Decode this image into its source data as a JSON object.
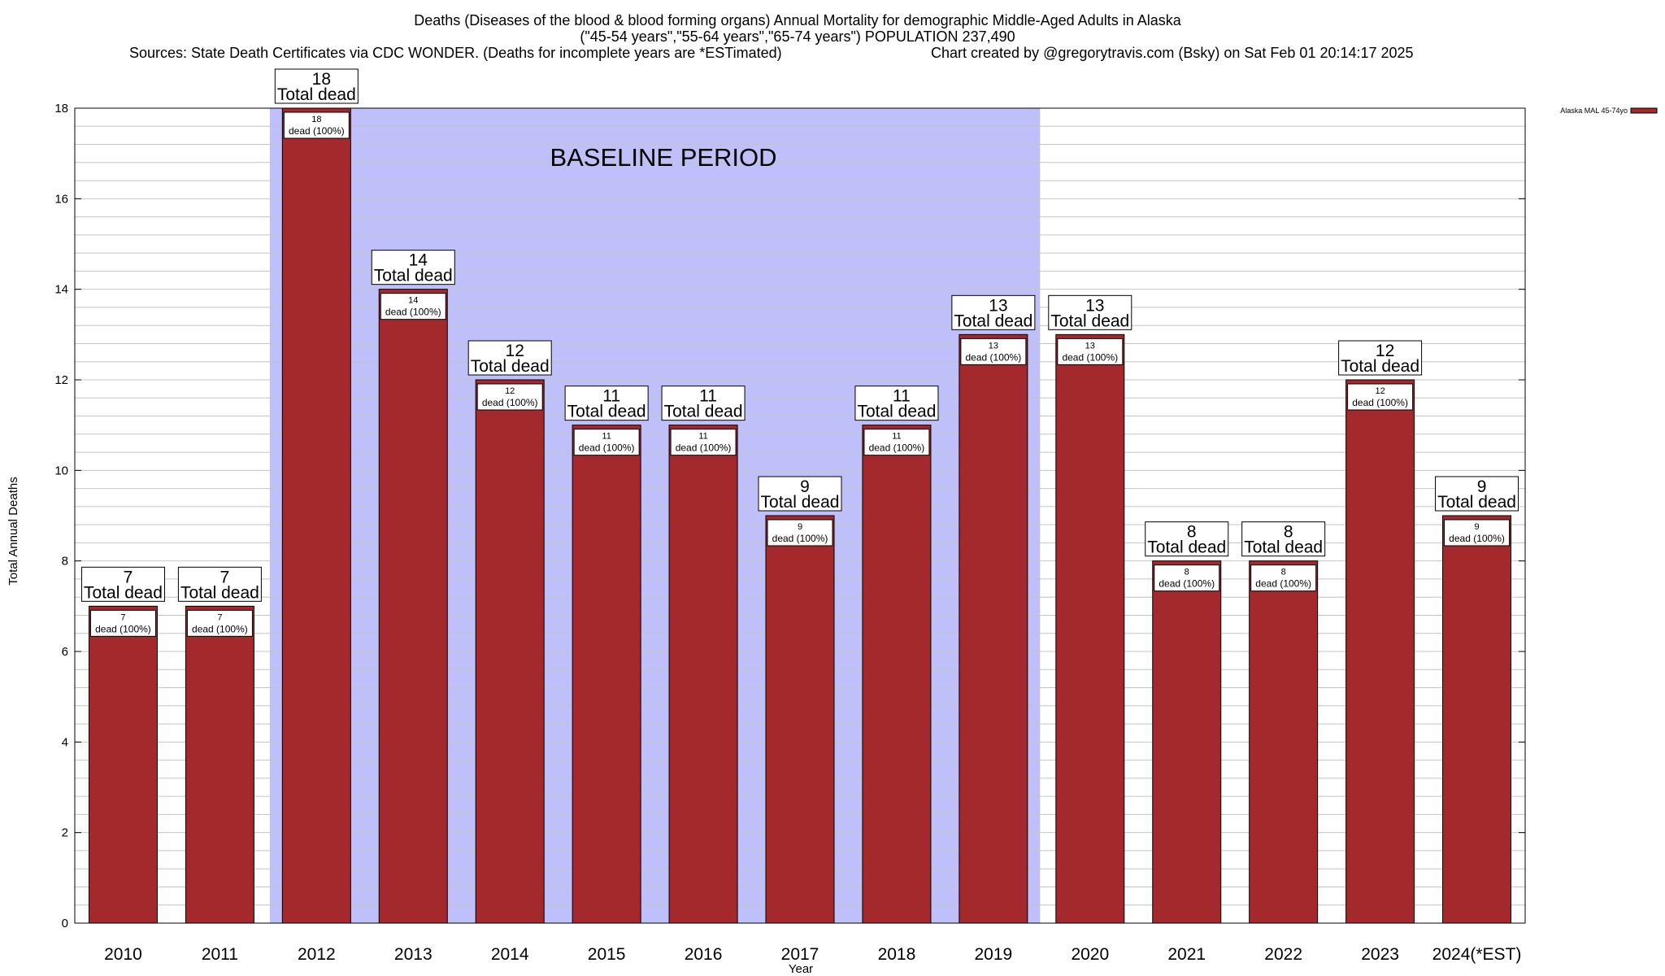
{
  "title_lines": [
    "Deaths (Diseases of the blood & blood forming organs) Annual Mortality for demographic Middle-Aged Adults in Alaska",
    "(\"45-54 years\",\"55-64 years\",\"65-74 years\") POPULATION 237,490"
  ],
  "sources": "Sources: State Death Certificates via CDC WONDER. (Deaths for incomplete years are *ESTimated)",
  "credit": "Chart created by @gregorytravis.com (Bsky) on Sat Feb 01 20:14:17 2025",
  "baseline_label": "BASELINE PERIOD",
  "total_label_word": "Total dead",
  "inner_label_word": "dead (100%)",
  "colors": {
    "bar": "#a3292c",
    "baseline_band": "#bfbff9",
    "grid": "#c4c4c4"
  },
  "chart_data": {
    "type": "bar",
    "xlabel": "Year",
    "ylabel": "Total Annual Deaths",
    "ylim": [
      0,
      18
    ],
    "y_ticks": [
      0,
      2,
      4,
      6,
      8,
      10,
      12,
      14,
      16,
      18
    ],
    "y_minor_step": 0.4,
    "grid": true,
    "categories": [
      "2010",
      "2011",
      "2012",
      "2013",
      "2014",
      "2015",
      "2016",
      "2017",
      "2018",
      "2019",
      "2020",
      "2021",
      "2022",
      "2023",
      "2024(*EST)"
    ],
    "series": [
      {
        "name": "Alaska MAL 45-74yo",
        "values": [
          7,
          7,
          18,
          14,
          12,
          11,
          11,
          9,
          11,
          13,
          13,
          8,
          8,
          12,
          9
        ]
      }
    ],
    "baseline_period": [
      "2012",
      "2019"
    ],
    "legend": {
      "position": "top-right",
      "entries": [
        "Alaska MAL 45-74yo"
      ]
    }
  }
}
